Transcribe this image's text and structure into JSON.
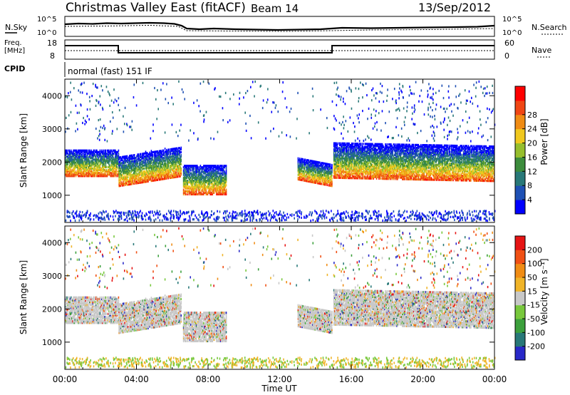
{
  "header": {
    "station": "Christmas Valley East (fitACF)",
    "beam": "Beam 14",
    "date": "13/Sep/2012"
  },
  "summary": {
    "nsky_label": "N.Sky",
    "nsearch_label": "N.Search",
    "freq_label_1": "Freq.",
    "freq_label_2": "[MHz]",
    "nave_label": "Nave",
    "cpid_label": "CPID",
    "cpid_value": "normal (fast) 151 IF",
    "noise_ticks": [
      "10^5",
      "10^0"
    ],
    "freq_ticks": [
      "18",
      "8"
    ],
    "nave_ticks": [
      "60",
      "0"
    ]
  },
  "chart_data": [
    {
      "type": "heatmap",
      "name": "power-panel",
      "xlabel": "",
      "ylabel": "Slant Range [km]",
      "xlim": [
        0,
        24
      ],
      "ylim": [
        180,
        4500
      ],
      "yticks": [
        1000,
        2000,
        3000,
        4000
      ],
      "colorbar": {
        "label": "Power [dB]",
        "ticks": [
          "4",
          "8",
          "12",
          "16",
          "20",
          "24",
          "28"
        ],
        "colors": [
          "#0000ff",
          "#1e50b4",
          "#287878",
          "#3c8c3c",
          "#96be2d",
          "#f0c81e",
          "#f08c14",
          "#f04614",
          "#ff0000"
        ]
      }
    },
    {
      "type": "heatmap",
      "name": "velocity-panel",
      "xlabel": "Time UT",
      "ylabel": "Slant Range [km]",
      "xlim": [
        0,
        24
      ],
      "ylim": [
        180,
        4500
      ],
      "xticks": [
        "00:00",
        "04:00",
        "08:00",
        "12:00",
        "16:00",
        "20:00",
        "00:00"
      ],
      "yticks": [
        1000,
        2000,
        3000,
        4000
      ],
      "colorbar": {
        "label": "Velocity [m s⁻¹]",
        "ticks": [
          "200",
          "100",
          "50",
          "15",
          "-15",
          "-50",
          "-100",
          "-200"
        ],
        "colors": [
          "#2828c8",
          "#287878",
          "#3ca03c",
          "#78c83c",
          "#c8c8c8",
          "#f0b428",
          "#f08c14",
          "#f05014",
          "#e61414"
        ]
      }
    }
  ]
}
